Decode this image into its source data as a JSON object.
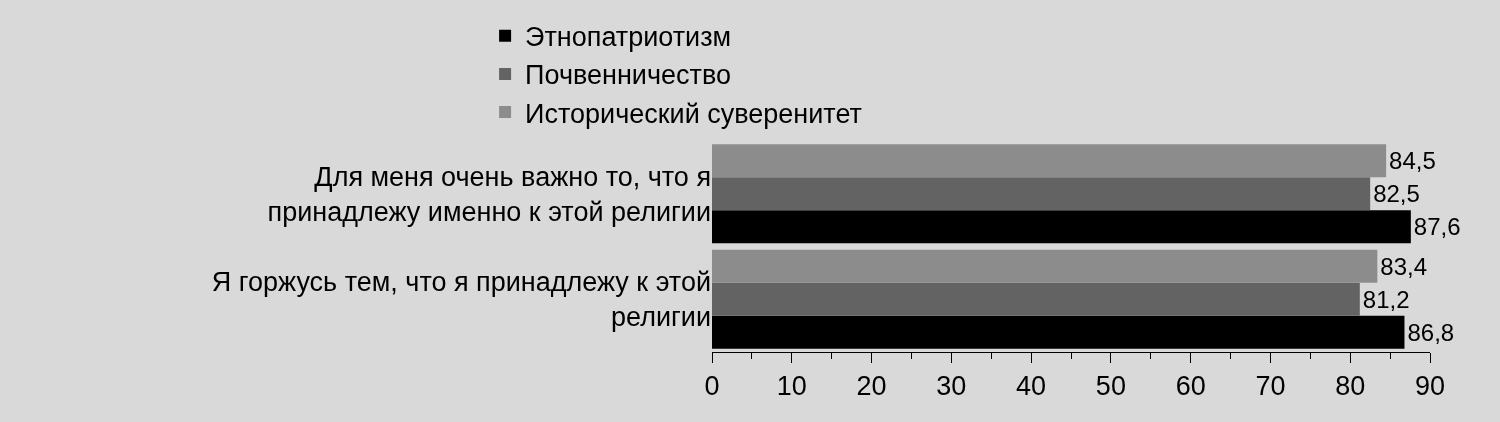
{
  "chart_data": {
    "type": "bar",
    "orientation": "horizontal",
    "categories": [
      "Для меня очень важно то, что я принадлежу именно к этой религии",
      "Я горжусь тем, что я принадлежу к этой религии"
    ],
    "series": [
      {
        "name": "Этнопатриотизм",
        "color": "#000000",
        "values": [
          87.6,
          86.8
        ],
        "value_labels": [
          "87,6",
          "86,8"
        ]
      },
      {
        "name": "Почвенничество",
        "color": "#636363",
        "values": [
          82.5,
          81.2
        ],
        "value_labels": [
          "82,5",
          "81,2"
        ]
      },
      {
        "name": "Исторический суверенитет",
        "color": "#8c8c8c",
        "values": [
          84.5,
          83.4
        ],
        "value_labels": [
          "84,5",
          "83,4"
        ]
      }
    ],
    "xlim": [
      0,
      90
    ],
    "xticks": [
      0,
      10,
      20,
      30,
      40,
      50,
      60,
      70,
      80,
      90
    ],
    "grid": false,
    "legend": "top"
  }
}
